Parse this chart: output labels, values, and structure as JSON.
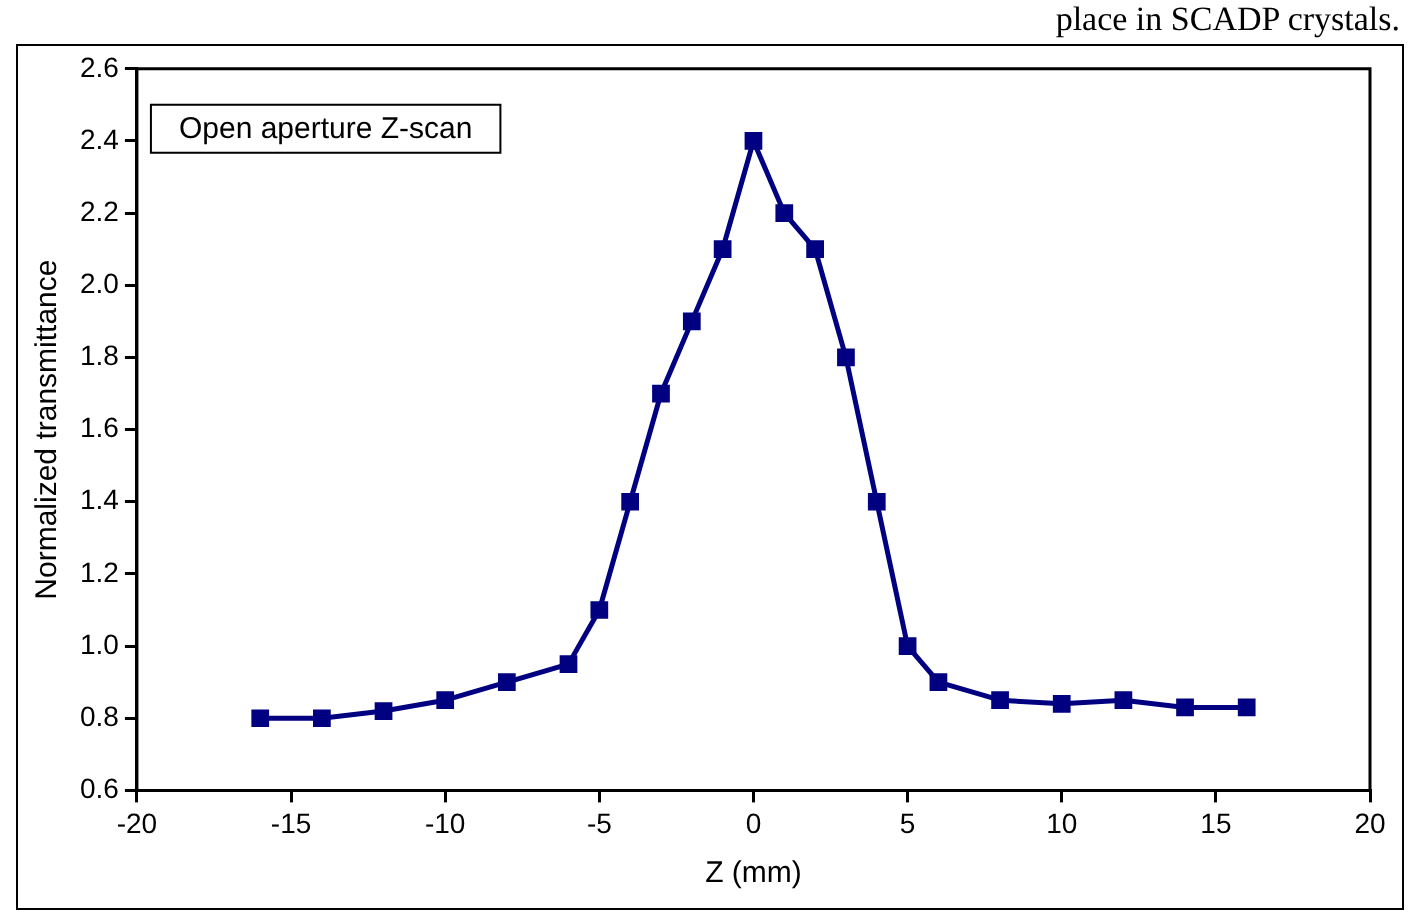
{
  "chart_data": {
    "type": "line",
    "xlabel": "Z (mm)",
    "ylabel": "Normalized transmittance",
    "annotations": [
      "Open aperture Z-scan",
      "place in SCADP crystals."
    ],
    "x": [
      -16,
      -14,
      -12,
      -10,
      -8,
      -6,
      -5,
      -4,
      -3,
      -2,
      -1,
      0,
      1,
      2,
      3,
      4,
      5,
      6,
      8,
      10,
      12,
      14,
      16
    ],
    "series": [
      {
        "color": "#000080",
        "values": [
          0.8,
          0.8,
          0.82,
          0.85,
          0.9,
          0.95,
          1.1,
          1.4,
          1.7,
          1.9,
          2.1,
          2.4,
          2.2,
          2.1,
          1.8,
          1.4,
          1.0,
          0.9,
          0.85,
          0.84,
          0.85,
          0.83,
          0.83
        ]
      }
    ],
    "xlim": [
      -20,
      20
    ],
    "xticks": [
      -20,
      -15,
      -10,
      -5,
      0,
      5,
      10,
      15,
      20
    ],
    "ylim": [
      0.6,
      2.6
    ],
    "yticks": [
      0.6,
      0.8,
      {
        "value": 1.0,
        "label": "1.0"
      },
      1.2,
      1.4,
      1.6,
      1.8,
      {
        "value": 2.0,
        "label": "2.0"
      },
      2.2,
      2.4,
      2.6
    ],
    "grid": false,
    "legend": false,
    "marker": "square",
    "line_style": "solid"
  }
}
